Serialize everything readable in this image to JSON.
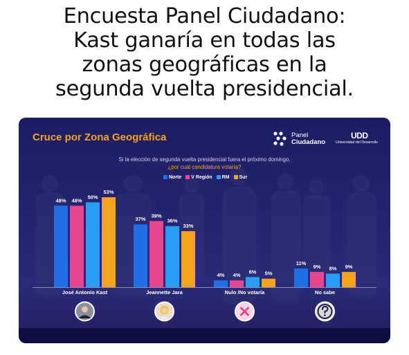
{
  "headline": {
    "line1": "Encuesta Panel Ciudadano:",
    "line2": "Kast ganaría en todas las",
    "line3": "zonas geográficas en la",
    "line4": "segunda vuelta presidencial."
  },
  "panel": {
    "title": "Cruce por Zona Geográfica",
    "logo_pc_line1": "Panel",
    "logo_pc_line2": "Ciudadano",
    "logo_udd_mark": "UDD",
    "logo_udd_sub": "Universidad del Desarrollo",
    "question_line1": "Si la elección de segunda vuelta presidencial fuera el próximo domingo,",
    "question_line2": "¿por cuál candidatura votaría?"
  },
  "colors": {
    "Norte": "#1f6fe8",
    "V Región": "#e8458f",
    "RM": "#2a9df4",
    "Sur": "#f3a41d",
    "title": "#f3a41d",
    "background": "#23236d"
  },
  "chart_data": {
    "type": "bar",
    "title": "Cruce por Zona Geográfica",
    "categories": [
      "José Antonio Kast",
      "Jeannette Jara",
      "Nulo /No votaría",
      "No sabe"
    ],
    "category_icons": [
      "kast-avatar",
      "jara-avatar",
      "cross-circle-icon",
      "question-circle-icon"
    ],
    "series": [
      {
        "name": "Norte",
        "values": [
          48,
          37,
          4,
          11
        ],
        "labels": [
          "48%",
          "37%",
          "4%",
          "11%"
        ]
      },
      {
        "name": "V Región",
        "values": [
          48,
          39,
          4,
          9
        ],
        "labels": [
          "48%",
          "39%",
          "4%",
          "9%"
        ]
      },
      {
        "name": "RM",
        "values": [
          50,
          36,
          6,
          8
        ],
        "labels": [
          "50%",
          "36%",
          "6%",
          "8%"
        ]
      },
      {
        "name": "Sur",
        "values": [
          53,
          33,
          5,
          9
        ],
        "labels": [
          "53%",
          "33%",
          "5%",
          "9%"
        ]
      }
    ],
    "ylim": [
      0,
      53
    ],
    "grid": false,
    "legend": "top-center"
  }
}
